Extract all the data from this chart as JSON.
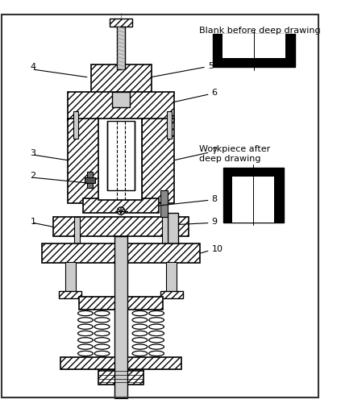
{
  "bg_color": "#ffffff",
  "text_blank": "Blank before deep drawing",
  "text_workpiece": "Workpiece after\ndeep drawing",
  "figsize": [
    4.23,
    5.11
  ],
  "dpi": 100,
  "labels": [
    {
      "num": "4",
      "from": [
        0.115,
        0.735
      ],
      "to": [
        0.045,
        0.7
      ]
    },
    {
      "num": "5",
      "from": [
        0.23,
        0.72
      ],
      "to": [
        0.34,
        0.74
      ]
    },
    {
      "num": "6",
      "from": [
        0.29,
        0.68
      ],
      "to": [
        0.34,
        0.68
      ]
    },
    {
      "num": "3",
      "from": [
        0.12,
        0.65
      ],
      "to": [
        0.05,
        0.645
      ]
    },
    {
      "num": "7",
      "from": [
        0.29,
        0.63
      ],
      "to": [
        0.34,
        0.62
      ]
    },
    {
      "num": "2",
      "from": [
        0.13,
        0.57
      ],
      "to": [
        0.05,
        0.556
      ]
    },
    {
      "num": "8",
      "from": [
        0.285,
        0.55
      ],
      "to": [
        0.34,
        0.54
      ]
    },
    {
      "num": "1",
      "from": [
        0.115,
        0.5
      ],
      "to": [
        0.045,
        0.49
      ]
    },
    {
      "num": "9",
      "from": [
        0.285,
        0.51
      ],
      "to": [
        0.34,
        0.5
      ]
    },
    {
      "num": "10",
      "from": [
        0.285,
        0.47
      ],
      "to": [
        0.34,
        0.462
      ]
    }
  ]
}
